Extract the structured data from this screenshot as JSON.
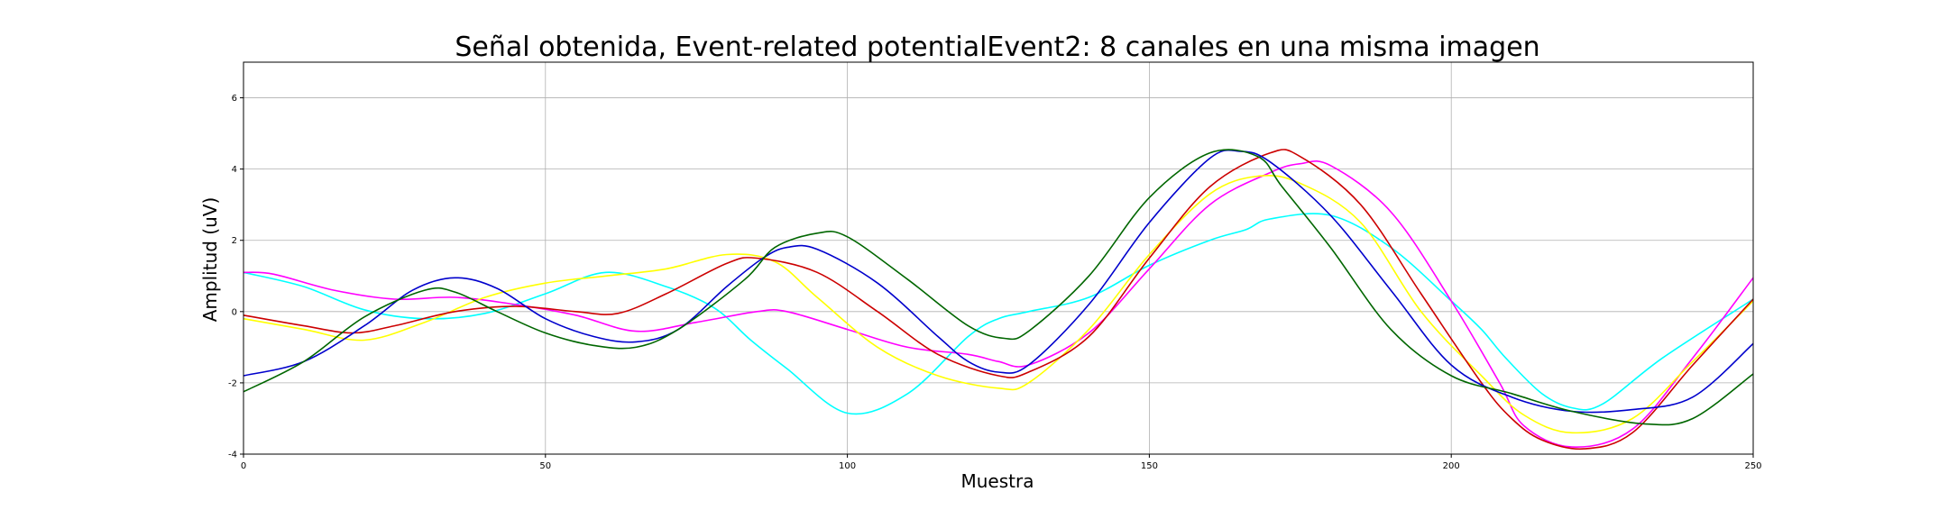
{
  "chart_data": {
    "type": "line",
    "title": "Señal obtenida, Event-related potentialEvent2: 8 canales en una misma imagen",
    "xlabel": "Muestra",
    "ylabel": "Amplitud (uV)",
    "xlim": [
      0,
      250
    ],
    "ylim": [
      -4,
      7
    ],
    "xticks": [
      0,
      50,
      100,
      150,
      200,
      250
    ],
    "yticks": [
      -4,
      -2,
      0,
      2,
      4,
      6
    ],
    "grid": true,
    "legend": "none",
    "series": [
      {
        "color": "#00ffff",
        "x": [
          0,
          10,
          20,
          30,
          40,
          50,
          60,
          70,
          78,
          84,
          90,
          100,
          110,
          120,
          125,
          130,
          140,
          150,
          160,
          166,
          170,
          180,
          190,
          200,
          205,
          209,
          215,
          220,
          225,
          235,
          250
        ],
        "y": [
          1.1,
          0.7,
          0.05,
          -0.2,
          -0.05,
          0.5,
          1.1,
          0.7,
          0.1,
          -0.8,
          -1.6,
          -2.85,
          -2.3,
          -0.7,
          -0.2,
          0.0,
          0.4,
          1.3,
          2.0,
          2.3,
          2.6,
          2.7,
          1.8,
          0.3,
          -0.5,
          -1.3,
          -2.3,
          -2.7,
          -2.6,
          -1.3,
          0.35
        ]
      },
      {
        "color": "#ff00ff",
        "x": [
          0,
          5,
          15,
          25,
          35,
          45,
          55,
          65,
          75,
          85,
          90,
          100,
          110,
          120,
          125,
          130,
          140,
          150,
          160,
          170,
          175,
          180,
          190,
          200,
          208,
          212,
          220,
          230,
          240,
          250
        ],
        "y": [
          1.1,
          1.05,
          0.6,
          0.35,
          0.4,
          0.2,
          -0.1,
          -0.55,
          -0.3,
          0.0,
          0.0,
          -0.5,
          -1.0,
          -1.2,
          -1.4,
          -1.5,
          -0.6,
          1.2,
          3.0,
          3.9,
          4.15,
          4.1,
          2.8,
          0.3,
          -2.0,
          -3.2,
          -3.8,
          -3.3,
          -1.3,
          0.95
        ]
      },
      {
        "color": "#ffff00",
        "x": [
          0,
          10,
          20,
          30,
          40,
          50,
          60,
          70,
          80,
          88,
          95,
          105,
          115,
          125,
          130,
          140,
          150,
          160,
          168,
          175,
          185,
          195,
          205,
          212,
          220,
          230,
          240,
          250
        ],
        "y": [
          -0.2,
          -0.5,
          -0.8,
          -0.3,
          0.4,
          0.8,
          1.0,
          1.2,
          1.6,
          1.4,
          0.4,
          -1.0,
          -1.8,
          -2.15,
          -2.0,
          -0.5,
          1.6,
          3.3,
          3.8,
          3.6,
          2.5,
          0.0,
          -1.8,
          -2.9,
          -3.4,
          -3.0,
          -1.4,
          0.3
        ]
      },
      {
        "color": "#cc0000",
        "x": [
          0,
          10,
          18,
          25,
          35,
          45,
          55,
          62,
          70,
          80,
          85,
          95,
          105,
          115,
          125,
          130,
          140,
          150,
          160,
          170,
          175,
          185,
          195,
          205,
          210,
          215,
          222,
          230,
          240,
          250
        ],
        "y": [
          -0.1,
          -0.4,
          -0.6,
          -0.4,
          0.0,
          0.15,
          0.0,
          -0.05,
          0.5,
          1.35,
          1.5,
          1.1,
          0.0,
          -1.2,
          -1.8,
          -1.7,
          -0.7,
          1.5,
          3.5,
          4.45,
          4.35,
          3.0,
          0.5,
          -2.0,
          -3.0,
          -3.6,
          -3.85,
          -3.4,
          -1.5,
          0.35
        ]
      },
      {
        "color": "#0000cc",
        "x": [
          0,
          10,
          20,
          28,
          35,
          42,
          50,
          58,
          65,
          72,
          80,
          86,
          90,
          95,
          105,
          115,
          120,
          125,
          130,
          140,
          150,
          160,
          165,
          170,
          180,
          190,
          200,
          210,
          220,
          230,
          240,
          250
        ],
        "y": [
          -1.8,
          -1.4,
          -0.4,
          0.6,
          0.95,
          0.65,
          -0.2,
          -0.7,
          -0.85,
          -0.5,
          0.7,
          1.5,
          1.8,
          1.75,
          0.8,
          -0.7,
          -1.4,
          -1.7,
          -1.5,
          0.2,
          2.5,
          4.3,
          4.5,
          4.2,
          2.7,
          0.6,
          -1.5,
          -2.4,
          -2.8,
          -2.75,
          -2.4,
          -0.9
        ]
      },
      {
        "color": "#006600",
        "x": [
          0,
          10,
          20,
          30,
          35,
          42,
          50,
          58,
          65,
          72,
          83,
          88,
          95,
          100,
          110,
          120,
          126,
          130,
          140,
          150,
          160,
          168,
          172,
          180,
          190,
          200,
          210,
          220,
          232,
          240,
          250
        ],
        "y": [
          -2.25,
          -1.4,
          -0.15,
          0.6,
          0.55,
          0.0,
          -0.6,
          -0.95,
          -1.0,
          -0.5,
          0.9,
          1.8,
          2.2,
          2.1,
          0.9,
          -0.4,
          -0.75,
          -0.55,
          1.0,
          3.2,
          4.45,
          4.35,
          3.5,
          1.8,
          -0.5,
          -1.8,
          -2.3,
          -2.8,
          -3.15,
          -3.0,
          -1.75
        ]
      }
    ]
  }
}
